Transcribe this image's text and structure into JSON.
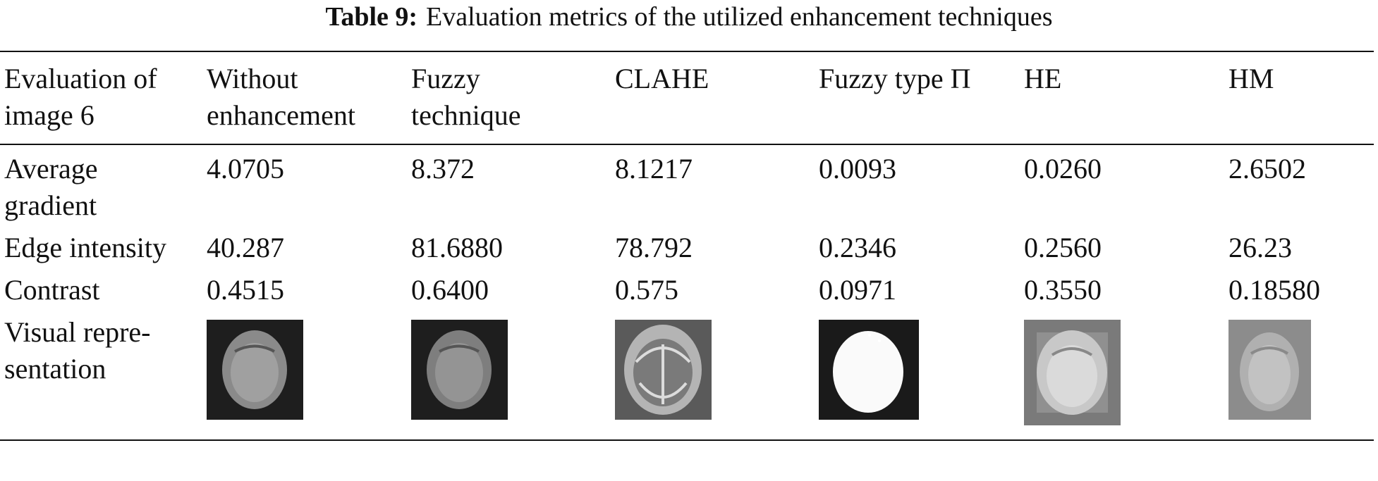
{
  "table": {
    "label": "Table 9:",
    "caption": "Evaluation metrics of the utilized enhancement techniques",
    "header": [
      "Evaluation of image 6",
      "Without enhancement",
      "Fuzzy technique",
      "CLAHE",
      "Fuzzy type Π",
      "HE",
      "HM"
    ],
    "rows": [
      [
        "Average gradient",
        "4.0705",
        "8.372",
        "8.1217",
        "0.0093",
        "0.0260",
        "2.6502"
      ],
      [
        "Edge intensity",
        "40.287",
        "81.6880",
        "78.792",
        "0.2346",
        "0.2560",
        "26.23"
      ],
      [
        "Contrast",
        "0.4515",
        "0.6400",
        "0.575",
        "0.0971",
        "0.3550",
        "0.18580"
      ],
      [
        "Visual repre-sentation"
      ]
    ]
  }
}
